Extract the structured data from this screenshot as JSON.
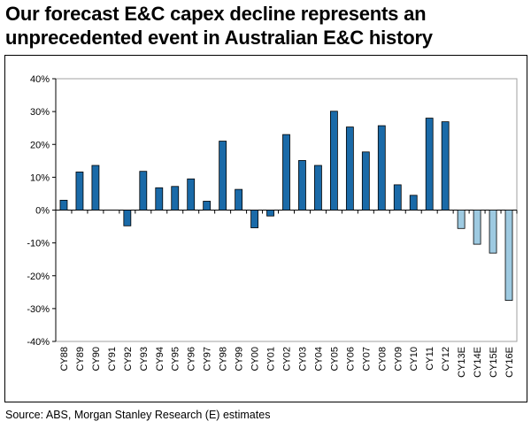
{
  "title": "Our forecast E&C capex decline represents an unprecedented event in Australian E&C history",
  "source": "Source: ABS, Morgan Stanley Research (E) estimates",
  "colors": {
    "actual": "#1a6aa8",
    "estimate": "#9ecae1",
    "outline": "#000000",
    "plot_border": "#a0a0a0"
  },
  "chart_data": {
    "type": "bar",
    "title": "Our forecast E&C capex decline represents an unprecedented event in Australian E&C history",
    "xlabel": "",
    "ylabel": "",
    "ylim": [
      -40,
      40
    ],
    "yticks": [
      -40,
      -30,
      -20,
      -10,
      0,
      10,
      20,
      30,
      40
    ],
    "ytick_labels": [
      "-40%",
      "-30%",
      "-20%",
      "-10%",
      "0%",
      "10%",
      "20%",
      "30%",
      "40%"
    ],
    "grid": false,
    "categories": [
      "CY88",
      "CY89",
      "CY90",
      "CY91",
      "CY92",
      "CY93",
      "CY94",
      "CY95",
      "CY96",
      "CY97",
      "CY98",
      "CY99",
      "CY00",
      "CY01",
      "CY02",
      "CY03",
      "CY04",
      "CY05",
      "CY06",
      "CY07",
      "CY08",
      "CY09",
      "CY10",
      "CY11",
      "CY12",
      "CY13E",
      "CY14E",
      "CY15E",
      "CY16E"
    ],
    "values": [
      3.0,
      11.6,
      13.6,
      0,
      -4.8,
      11.8,
      6.8,
      7.2,
      9.5,
      2.7,
      21.0,
      6.3,
      -5.4,
      -1.8,
      23.0,
      15.1,
      13.6,
      30.1,
      25.3,
      17.7,
      25.7,
      7.7,
      4.5,
      28.0,
      26.9,
      -5.6,
      -10.4,
      -13.1,
      -27.5
    ],
    "estimate": [
      false,
      false,
      false,
      false,
      false,
      false,
      false,
      false,
      false,
      false,
      false,
      false,
      false,
      false,
      false,
      false,
      false,
      false,
      false,
      false,
      false,
      false,
      false,
      false,
      false,
      true,
      true,
      true,
      true
    ]
  }
}
